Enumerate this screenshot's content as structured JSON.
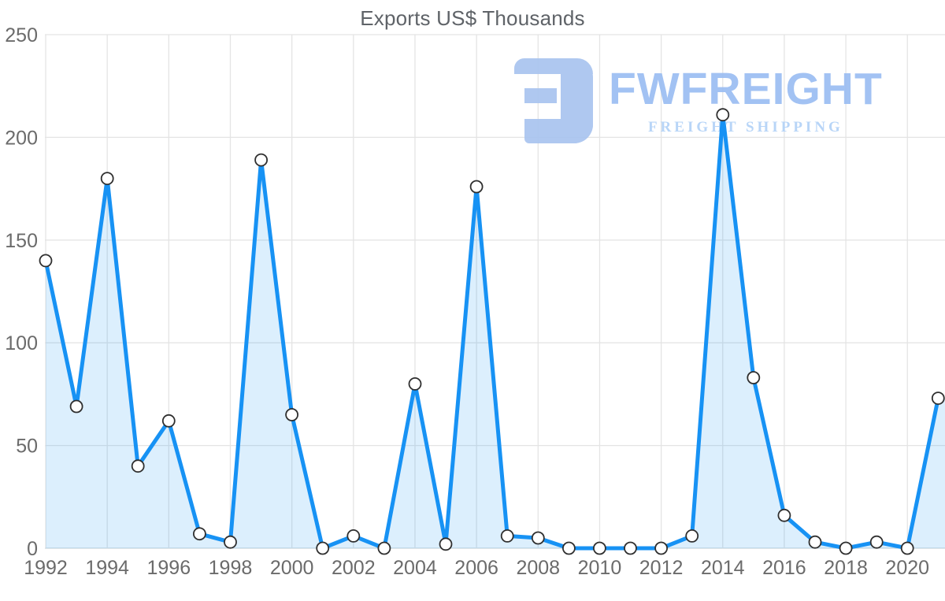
{
  "chart_data": {
    "type": "area",
    "title": "Exports US$ Thousands",
    "xlabel": "",
    "ylabel": "",
    "x": [
      1992,
      1993,
      1994,
      1995,
      1996,
      1997,
      1998,
      1999,
      2000,
      2001,
      2002,
      2003,
      2004,
      2005,
      2006,
      2007,
      2008,
      2009,
      2010,
      2011,
      2012,
      2013,
      2014,
      2015,
      2016,
      2017,
      2018,
      2019,
      2020,
      2021
    ],
    "values": [
      140,
      69,
      180,
      40,
      62,
      7,
      3,
      189,
      65,
      0,
      6,
      0,
      80,
      2,
      176,
      6,
      5,
      0,
      0,
      0,
      0,
      6,
      211,
      83,
      16,
      3,
      0,
      3,
      0,
      73
    ],
    "series_name": "Exports US$ Thousands",
    "ylim": [
      0,
      250
    ],
    "yticks": [
      0,
      50,
      100,
      150,
      200,
      250
    ],
    "xtick_years": [
      1992,
      1994,
      1996,
      1998,
      2000,
      2002,
      2004,
      2006,
      2008,
      2010,
      2012,
      2014,
      2016,
      2018,
      2020
    ],
    "grid": true,
    "legend": "none",
    "line_color": "#1792f4",
    "fill_color": "rgba(23,146,244,0.15)",
    "marker_fill": "#ffffff",
    "marker_stroke": "#2f2f2f",
    "grid_color": "#e4e4e4",
    "axis_line_color": "#ccd6dc",
    "tick_label_color": "#6b6b6b",
    "title_color": "#5f6368"
  },
  "watermark": {
    "brand": "FWFREIGHT",
    "tagline": "FREIGHT SHIPPING",
    "brand_color": "#9bbdf2",
    "icon_color": "#a9c4ef"
  }
}
